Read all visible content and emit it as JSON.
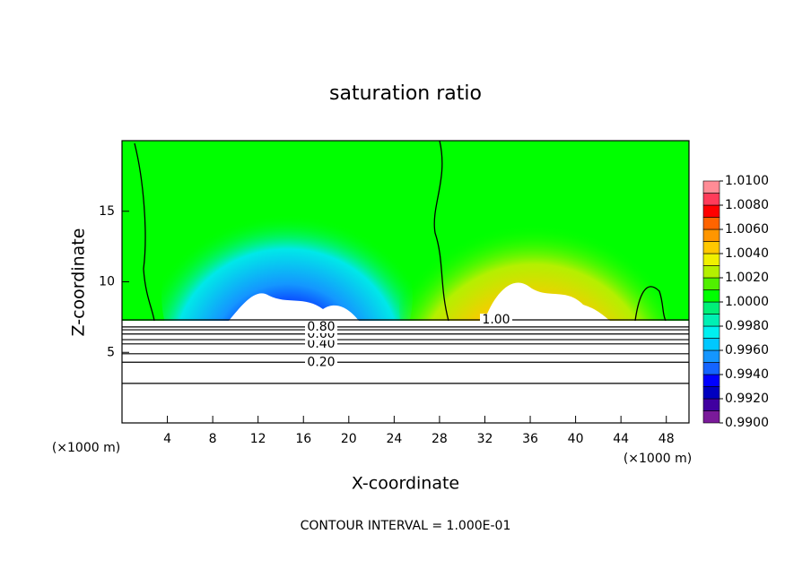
{
  "chart_data": {
    "type": "contour",
    "title": "saturation ratio",
    "xlabel": "X-coordinate",
    "ylabel": "Z-coordinate",
    "x_unit_left": "(×1000 m)",
    "x_unit_right": "(×1000 m)",
    "footer": "CONTOUR INTERVAL = 1.000E-01",
    "xlim": [
      0,
      50
    ],
    "ylim": [
      0,
      20
    ],
    "xticks": [
      4,
      8,
      12,
      16,
      20,
      24,
      28,
      32,
      36,
      40,
      44,
      48
    ],
    "yticks": [
      5,
      10,
      15
    ],
    "contours": [
      {
        "level": 0.1,
        "z": 2.8
      },
      {
        "level": 0.2,
        "label": "0.20",
        "z": 4.3
      },
      {
        "level": 0.3,
        "z": 4.9
      },
      {
        "level": 0.4,
        "label": "0.40",
        "z": 5.6
      },
      {
        "level": 0.5,
        "z": 5.9
      },
      {
        "level": 0.6,
        "label": "0.60",
        "z": 6.3
      },
      {
        "level": 0.7,
        "z": 6.6
      },
      {
        "level": 0.8,
        "label": "0.80",
        "z": 6.8
      },
      {
        "level": 1.0,
        "label": "1.00",
        "z": 7.3
      }
    ],
    "colorbar": {
      "levels": [
        0.99,
        0.991,
        0.992,
        0.993,
        0.994,
        0.995,
        0.996,
        0.997,
        0.998,
        0.999,
        1.0,
        1.001,
        1.002,
        1.003,
        1.004,
        1.005,
        1.006,
        1.007,
        1.008,
        1.009,
        1.01
      ],
      "colors": [
        "#7a1a9a",
        "#4000a0",
        "#0000c0",
        "#0000ff",
        "#1464ff",
        "#1496ff",
        "#00c8ff",
        "#00f0f0",
        "#00f0b4",
        "#00f078",
        "#00ff00",
        "#50f000",
        "#b4f000",
        "#f0f000",
        "#ffc800",
        "#ff9600",
        "#ff6400",
        "#ff0000",
        "#ff3c5a",
        "#ff8c96"
      ],
      "ticks": [
        {
          "value": 0.99,
          "label": "0.9900"
        },
        {
          "value": 0.992,
          "label": "0.9920"
        },
        {
          "value": 0.994,
          "label": "0.9940"
        },
        {
          "value": 0.996,
          "label": "0.9960"
        },
        {
          "value": 0.998,
          "label": "0.9980"
        },
        {
          "value": 1.0,
          "label": "1.0000"
        },
        {
          "value": 1.002,
          "label": "1.0020"
        },
        {
          "value": 1.004,
          "label": "1.0040"
        },
        {
          "value": 1.006,
          "label": "1.0060"
        },
        {
          "value": 1.008,
          "label": "1.0080"
        },
        {
          "value": 1.01,
          "label": "1.0100"
        }
      ]
    }
  }
}
